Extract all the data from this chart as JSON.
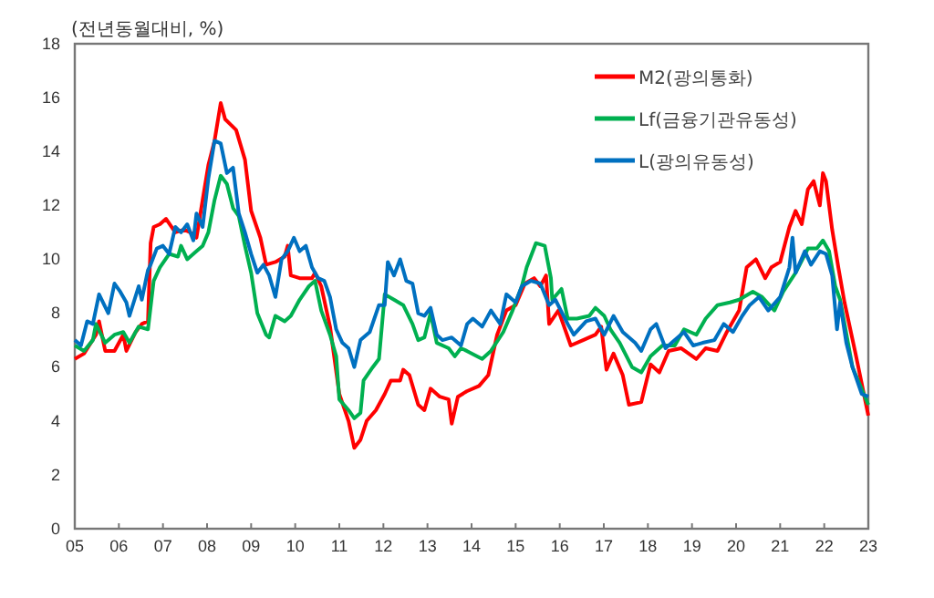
{
  "chart_data": {
    "type": "line",
    "ylabel": "(전년동월대비, %)",
    "xlim": [
      2005,
      2023
    ],
    "xticks": [
      {
        "value": 2005,
        "label": "05"
      },
      {
        "value": 2006,
        "label": "06"
      },
      {
        "value": 2007,
        "label": "07"
      },
      {
        "value": 2008,
        "label": "08"
      },
      {
        "value": 2009,
        "label": "09"
      },
      {
        "value": 2010,
        "label": "10"
      },
      {
        "value": 2011,
        "label": "11"
      },
      {
        "value": 2012,
        "label": "12"
      },
      {
        "value": 2013,
        "label": "13"
      },
      {
        "value": 2014,
        "label": "14"
      },
      {
        "value": 2015,
        "label": "15"
      },
      {
        "value": 2016,
        "label": "16"
      },
      {
        "value": 2017,
        "label": "17"
      },
      {
        "value": 2018,
        "label": "18"
      },
      {
        "value": 2019,
        "label": "19"
      },
      {
        "value": 2020,
        "label": "20"
      },
      {
        "value": 2021,
        "label": "21"
      },
      {
        "value": 2022,
        "label": "22"
      },
      {
        "value": 2023,
        "label": "23"
      }
    ],
    "ylim": [
      0,
      18
    ],
    "yticks": [
      0,
      2,
      4,
      6,
      8,
      10,
      12,
      14,
      16,
      18
    ],
    "grid": false,
    "legend": "top right",
    "marker": "none",
    "line_style": "solid",
    "series": [
      {
        "name": "M2(광의통화)",
        "color": "#ff0000",
        "x": [
          2005.0,
          2005.21,
          2005.48,
          2005.55,
          2005.69,
          2005.9,
          2006.1,
          2006.17,
          2006.38,
          2006.52,
          2006.66,
          2006.72,
          2006.79,
          2006.93,
          2007.07,
          2007.28,
          2007.48,
          2007.62,
          2007.76,
          2007.9,
          2008.03,
          2008.17,
          2008.31,
          2008.41,
          2008.66,
          2008.86,
          2009.0,
          2009.21,
          2009.34,
          2009.55,
          2009.76,
          2009.83,
          2009.9,
          2010.1,
          2010.38,
          2010.45,
          2010.59,
          2010.79,
          2011.0,
          2011.21,
          2011.34,
          2011.48,
          2011.62,
          2011.83,
          2012.03,
          2012.17,
          2012.38,
          2012.45,
          2012.59,
          2012.79,
          2012.93,
          2013.07,
          2013.28,
          2013.48,
          2013.55,
          2013.69,
          2013.89,
          2014.17,
          2014.38,
          2014.58,
          2014.79,
          2015.0,
          2015.21,
          2015.42,
          2015.56,
          2015.69,
          2015.76,
          2015.97,
          2016.25,
          2016.53,
          2016.81,
          2016.94,
          2017.06,
          2017.22,
          2017.43,
          2017.57,
          2017.85,
          2018.06,
          2018.26,
          2018.47,
          2018.75,
          2019.1,
          2019.31,
          2019.58,
          2019.79,
          2020.07,
          2020.24,
          2020.45,
          2020.66,
          2020.8,
          2021.0,
          2021.21,
          2021.35,
          2021.49,
          2021.63,
          2021.76,
          2021.9,
          2021.97,
          2022.04,
          2022.18,
          2022.32,
          2022.46,
          2022.71,
          2023.0
        ],
        "values": [
          6.3,
          6.5,
          7.2,
          7.7,
          6.6,
          6.6,
          7.2,
          6.6,
          7.3,
          7.6,
          7.7,
          10.6,
          11.2,
          11.3,
          11.5,
          11.0,
          11.1,
          11.0,
          10.8,
          12.2,
          13.5,
          14.4,
          15.8,
          15.2,
          14.8,
          13.7,
          11.8,
          10.8,
          9.8,
          9.9,
          10.1,
          10.5,
          9.4,
          9.3,
          9.3,
          9.5,
          9.0,
          7.5,
          5.0,
          4.0,
          3.0,
          3.3,
          4.0,
          4.4,
          5.0,
          5.5,
          5.5,
          5.9,
          5.7,
          4.6,
          4.4,
          5.2,
          4.9,
          4.8,
          3.9,
          4.9,
          5.1,
          5.3,
          5.7,
          7.2,
          8.1,
          8.3,
          9.1,
          9.3,
          9.0,
          9.4,
          7.6,
          8.1,
          6.8,
          7.0,
          7.2,
          7.5,
          5.9,
          6.5,
          5.7,
          4.6,
          4.7,
          6.1,
          5.8,
          6.6,
          6.7,
          6.3,
          6.7,
          6.6,
          7.3,
          8.1,
          9.7,
          10.0,
          9.3,
          9.7,
          9.9,
          11.2,
          11.8,
          11.3,
          12.6,
          12.9,
          12.0,
          13.2,
          12.9,
          11.1,
          9.7,
          8.4,
          6.5,
          4.2
        ]
      },
      {
        "name": "Lf(금융기관유동성)",
        "color": "#00b050",
        "x": [
          2005.0,
          2005.21,
          2005.41,
          2005.48,
          2005.69,
          2005.9,
          2006.1,
          2006.24,
          2006.45,
          2006.66,
          2006.79,
          2006.93,
          2007.14,
          2007.34,
          2007.41,
          2007.55,
          2007.76,
          2007.9,
          2008.03,
          2008.17,
          2008.31,
          2008.45,
          2008.59,
          2008.72,
          2008.86,
          2009.0,
          2009.14,
          2009.34,
          2009.41,
          2009.55,
          2009.76,
          2009.9,
          2010.1,
          2010.31,
          2010.45,
          2010.59,
          2010.79,
          2010.93,
          2011.0,
          2011.21,
          2011.34,
          2011.48,
          2011.55,
          2011.76,
          2011.9,
          2012.03,
          2012.24,
          2012.45,
          2012.66,
          2012.79,
          2012.93,
          2013.07,
          2013.21,
          2013.48,
          2013.62,
          2013.76,
          2013.89,
          2014.24,
          2014.44,
          2014.72,
          2014.93,
          2015.14,
          2015.25,
          2015.46,
          2015.66,
          2015.8,
          2015.83,
          2016.04,
          2016.18,
          2016.39,
          2016.67,
          2016.81,
          2017.01,
          2017.15,
          2017.36,
          2017.64,
          2017.85,
          2018.06,
          2018.33,
          2018.61,
          2018.82,
          2019.1,
          2019.31,
          2019.58,
          2019.86,
          2020.07,
          2020.38,
          2020.59,
          2020.87,
          2021.07,
          2021.35,
          2021.63,
          2021.83,
          2021.97,
          2022.11,
          2022.25,
          2022.36,
          2022.64,
          2023.0
        ],
        "values": [
          6.8,
          6.6,
          7.0,
          7.6,
          6.9,
          7.2,
          7.3,
          6.9,
          7.5,
          7.4,
          9.2,
          9.7,
          10.2,
          10.1,
          10.5,
          10.0,
          10.3,
          10.5,
          11.0,
          12.2,
          13.1,
          12.8,
          11.9,
          11.6,
          10.5,
          9.5,
          8.0,
          7.2,
          7.1,
          7.9,
          7.7,
          7.9,
          8.5,
          9.0,
          9.2,
          8.1,
          7.2,
          6.4,
          4.8,
          4.4,
          4.1,
          4.3,
          5.5,
          6.0,
          6.3,
          8.7,
          8.5,
          8.3,
          7.6,
          7.0,
          7.1,
          8.0,
          6.9,
          6.7,
          6.4,
          6.7,
          6.6,
          6.3,
          6.6,
          7.3,
          8.1,
          9.0,
          9.7,
          10.6,
          10.5,
          9.3,
          8.5,
          8.9,
          7.8,
          7.8,
          7.9,
          8.2,
          7.9,
          7.4,
          6.9,
          6.0,
          5.8,
          6.4,
          6.8,
          6.8,
          7.4,
          7.2,
          7.8,
          8.3,
          8.4,
          8.5,
          8.8,
          8.6,
          8.1,
          8.8,
          9.5,
          10.4,
          10.4,
          10.7,
          10.3,
          9.0,
          8.5,
          6.0,
          4.6
        ]
      },
      {
        "name": "L(광의유동성)",
        "color": "#0070c0",
        "x": [
          2005.0,
          2005.14,
          2005.28,
          2005.41,
          2005.55,
          2005.76,
          2005.9,
          2006.03,
          2006.17,
          2006.24,
          2006.45,
          2006.52,
          2006.66,
          2006.72,
          2006.86,
          2007.0,
          2007.14,
          2007.28,
          2007.41,
          2007.55,
          2007.69,
          2007.76,
          2007.9,
          2008.03,
          2008.17,
          2008.31,
          2008.45,
          2008.59,
          2008.72,
          2008.86,
          2009.0,
          2009.14,
          2009.28,
          2009.41,
          2009.55,
          2009.69,
          2009.83,
          2009.97,
          2010.1,
          2010.24,
          2010.38,
          2010.52,
          2010.66,
          2010.79,
          2010.93,
          2011.07,
          2011.21,
          2011.34,
          2011.48,
          2011.69,
          2011.9,
          2012.03,
          2012.1,
          2012.24,
          2012.38,
          2012.52,
          2012.66,
          2012.79,
          2012.93,
          2013.07,
          2013.21,
          2013.34,
          2013.55,
          2013.76,
          2013.9,
          2014.03,
          2014.24,
          2014.44,
          2014.65,
          2014.79,
          2015.0,
          2015.14,
          2015.35,
          2015.56,
          2015.76,
          2015.9,
          2016.18,
          2016.32,
          2016.6,
          2016.81,
          2017.01,
          2017.22,
          2017.43,
          2017.71,
          2017.85,
          2018.06,
          2018.19,
          2018.4,
          2018.61,
          2018.82,
          2019.03,
          2019.24,
          2019.51,
          2019.72,
          2019.93,
          2020.14,
          2020.31,
          2020.52,
          2020.73,
          2021.0,
          2021.21,
          2021.28,
          2021.35,
          2021.56,
          2021.7,
          2021.9,
          2022.04,
          2022.18,
          2022.29,
          2022.36,
          2022.5,
          2022.64,
          2022.85,
          2023.0
        ],
        "values": [
          7.0,
          6.8,
          7.7,
          7.6,
          8.7,
          8.0,
          9.1,
          8.8,
          8.4,
          7.9,
          9.0,
          8.5,
          9.6,
          9.8,
          10.4,
          10.5,
          10.2,
          11.2,
          11.0,
          11.3,
          10.7,
          11.7,
          11.2,
          13.0,
          14.4,
          14.3,
          13.2,
          13.4,
          11.7,
          11.0,
          10.2,
          9.5,
          9.8,
          9.4,
          8.6,
          10.0,
          10.3,
          10.8,
          10.3,
          10.5,
          9.7,
          9.3,
          9.2,
          8.6,
          7.4,
          6.9,
          6.7,
          6.0,
          7.0,
          7.3,
          8.3,
          8.3,
          9.9,
          9.4,
          10.0,
          9.2,
          9.1,
          8.0,
          7.9,
          8.2,
          7.2,
          7.0,
          7.1,
          6.8,
          7.6,
          7.8,
          7.5,
          8.1,
          7.6,
          8.7,
          8.4,
          9.0,
          9.2,
          9.1,
          8.3,
          8.5,
          7.6,
          7.2,
          7.7,
          7.8,
          7.2,
          7.9,
          7.3,
          6.9,
          6.6,
          7.4,
          7.6,
          6.7,
          7.0,
          7.3,
          6.8,
          6.9,
          7.0,
          7.6,
          7.3,
          7.9,
          8.3,
          8.6,
          8.1,
          8.6,
          9.7,
          10.8,
          9.5,
          10.3,
          9.8,
          10.3,
          10.2,
          9.4,
          7.4,
          8.4,
          6.9,
          6.0,
          5.0,
          4.9
        ]
      }
    ]
  }
}
